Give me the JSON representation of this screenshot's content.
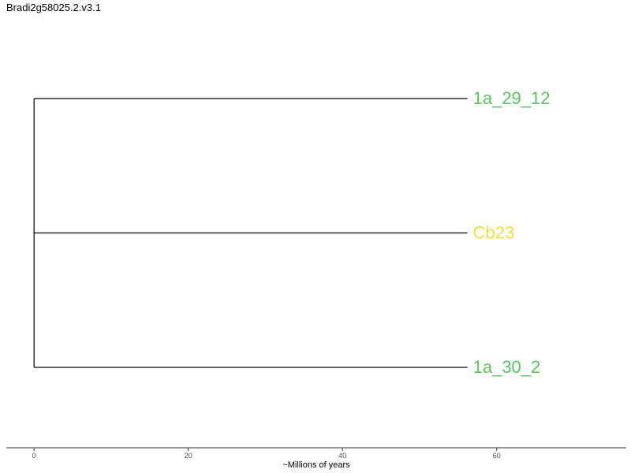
{
  "title": "Bradi2g58025.2.v3.1",
  "tree": {
    "root_age": 0,
    "tips": [
      {
        "label": "1a_29_12",
        "branch_length": 56.2,
        "color": "#55c85a"
      },
      {
        "label": "Cb23",
        "branch_length": 56.2,
        "color": "#f5e03a"
      },
      {
        "label": "1a_30_2",
        "branch_length": 56.2,
        "color": "#55c85a"
      }
    ]
  },
  "axis": {
    "label": "~Millions of years",
    "range": [
      -3.6,
      76.8
    ],
    "ticks": [
      0,
      20,
      40,
      60
    ],
    "tick_labels": [
      "0",
      "20",
      "40",
      "60"
    ]
  },
  "colors": {
    "branch": "#000000",
    "axis": "#333333"
  }
}
